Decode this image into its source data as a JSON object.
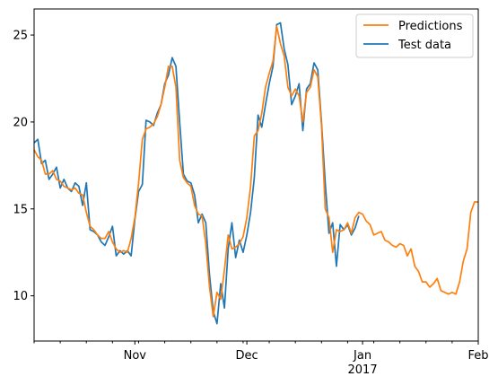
{
  "chart_data": {
    "type": "line",
    "title": "",
    "xlabel": "",
    "ylabel": "",
    "ylim": [
      7.4,
      26.5
    ],
    "xlim": [
      "2016-10-05",
      "2017-02-01"
    ],
    "grid": false,
    "legend_position": "top-right",
    "x_tick_labels": [
      {
        "date": "2016-11-01",
        "label": "Nov"
      },
      {
        "date": "2016-12-01",
        "label": "Dec"
      },
      {
        "date": "2017-01-01",
        "label": "Jan",
        "sublabel": "2017"
      },
      {
        "date": "2017-02-01",
        "label": "Feb"
      }
    ],
    "y_tick_labels": [
      10,
      15,
      20,
      25
    ],
    "series": [
      {
        "name": "Predictions",
        "color": "#ff7f0e",
        "points": [
          [
            "2016-10-05",
            18.4
          ],
          [
            "2016-10-06",
            18.0
          ],
          [
            "2016-10-07",
            17.8
          ],
          [
            "2016-10-08",
            17.0
          ],
          [
            "2016-10-09",
            17.0
          ],
          [
            "2016-10-10",
            17.2
          ],
          [
            "2016-10-11",
            16.7
          ],
          [
            "2016-10-12",
            16.6
          ],
          [
            "2016-10-13",
            16.3
          ],
          [
            "2016-10-14",
            16.2
          ],
          [
            "2016-10-15",
            16.1
          ],
          [
            "2016-10-16",
            16.2
          ],
          [
            "2016-10-17",
            15.9
          ],
          [
            "2016-10-18",
            15.8
          ],
          [
            "2016-10-19",
            14.8
          ],
          [
            "2016-10-20",
            14.0
          ],
          [
            "2016-10-21",
            13.8
          ],
          [
            "2016-10-22",
            13.5
          ],
          [
            "2016-10-23",
            13.3
          ],
          [
            "2016-10-24",
            13.3
          ],
          [
            "2016-10-25",
            13.7
          ],
          [
            "2016-10-26",
            13.1
          ],
          [
            "2016-10-27",
            12.7
          ],
          [
            "2016-10-28",
            12.5
          ],
          [
            "2016-10-29",
            12.6
          ],
          [
            "2016-10-30",
            12.5
          ],
          [
            "2016-10-31",
            13.3
          ],
          [
            "2016-11-01",
            14.5
          ],
          [
            "2016-11-02",
            16.5
          ],
          [
            "2016-11-03",
            19.0
          ],
          [
            "2016-11-04",
            19.6
          ],
          [
            "2016-11-05",
            19.7
          ],
          [
            "2016-11-06",
            19.9
          ],
          [
            "2016-11-07",
            20.3
          ],
          [
            "2016-11-08",
            21.0
          ],
          [
            "2016-11-09",
            22.0
          ],
          [
            "2016-11-10",
            23.2
          ],
          [
            "2016-11-11",
            23.2
          ],
          [
            "2016-11-12",
            22.0
          ],
          [
            "2016-11-13",
            17.8
          ],
          [
            "2016-11-14",
            16.8
          ],
          [
            "2016-11-15",
            16.5
          ],
          [
            "2016-11-16",
            16.3
          ],
          [
            "2016-11-17",
            15.2
          ],
          [
            "2016-11-18",
            14.7
          ],
          [
            "2016-11-19",
            14.6
          ],
          [
            "2016-11-20",
            13.0
          ],
          [
            "2016-11-21",
            10.5
          ],
          [
            "2016-11-22",
            8.8
          ],
          [
            "2016-11-23",
            10.2
          ],
          [
            "2016-11-24",
            9.8
          ],
          [
            "2016-11-25",
            11.5
          ],
          [
            "2016-11-26",
            13.5
          ],
          [
            "2016-11-27",
            12.7
          ],
          [
            "2016-11-28",
            12.8
          ],
          [
            "2016-11-29",
            13.0
          ],
          [
            "2016-11-30",
            13.4
          ],
          [
            "2016-12-01",
            14.5
          ],
          [
            "2016-12-02",
            16.3
          ],
          [
            "2016-12-03",
            19.2
          ],
          [
            "2016-12-04",
            19.5
          ],
          [
            "2016-12-05",
            20.5
          ],
          [
            "2016-12-06",
            22.0
          ],
          [
            "2016-12-07",
            22.8
          ],
          [
            "2016-12-08",
            23.5
          ],
          [
            "2016-12-09",
            25.5
          ],
          [
            "2016-12-10",
            24.5
          ],
          [
            "2016-12-11",
            23.8
          ],
          [
            "2016-12-12",
            22.0
          ],
          [
            "2016-12-13",
            21.5
          ],
          [
            "2016-12-14",
            21.9
          ],
          [
            "2016-12-15",
            21.5
          ],
          [
            "2016-12-16",
            20.0
          ],
          [
            "2016-12-17",
            21.7
          ],
          [
            "2016-12-18",
            22.0
          ],
          [
            "2016-12-19",
            23.0
          ],
          [
            "2016-12-20",
            22.6
          ],
          [
            "2016-12-21",
            19.8
          ],
          [
            "2016-12-22",
            15.0
          ],
          [
            "2016-12-23",
            14.5
          ],
          [
            "2016-12-24",
            12.5
          ],
          [
            "2016-12-25",
            13.8
          ],
          [
            "2016-12-26",
            13.7
          ],
          [
            "2016-12-27",
            13.8
          ],
          [
            "2016-12-28",
            14.2
          ],
          [
            "2016-12-29",
            13.6
          ],
          [
            "2016-12-30",
            14.5
          ],
          [
            "2016-12-31",
            14.8
          ],
          [
            "2017-01-01",
            14.7
          ],
          [
            "2017-01-02",
            14.3
          ],
          [
            "2017-01-03",
            14.1
          ],
          [
            "2017-01-04",
            13.5
          ],
          [
            "2017-01-05",
            13.6
          ],
          [
            "2017-01-06",
            13.7
          ],
          [
            "2017-01-07",
            13.2
          ],
          [
            "2017-01-08",
            13.1
          ],
          [
            "2017-01-09",
            12.9
          ],
          [
            "2017-01-10",
            12.8
          ],
          [
            "2017-01-11",
            13.0
          ],
          [
            "2017-01-12",
            12.9
          ],
          [
            "2017-01-13",
            12.3
          ],
          [
            "2017-01-14",
            12.7
          ],
          [
            "2017-01-15",
            11.7
          ],
          [
            "2017-01-16",
            11.4
          ],
          [
            "2017-01-17",
            10.8
          ],
          [
            "2017-01-18",
            10.8
          ],
          [
            "2017-01-19",
            10.5
          ],
          [
            "2017-01-20",
            10.7
          ],
          [
            "2017-01-21",
            11.0
          ],
          [
            "2017-01-22",
            10.3
          ],
          [
            "2017-01-23",
            10.2
          ],
          [
            "2017-01-24",
            10.1
          ],
          [
            "2017-01-25",
            10.2
          ],
          [
            "2017-01-26",
            10.1
          ],
          [
            "2017-01-27",
            10.8
          ],
          [
            "2017-01-28",
            12.0
          ],
          [
            "2017-01-29",
            12.7
          ],
          [
            "2017-01-30",
            14.8
          ],
          [
            "2017-01-31",
            15.4
          ],
          [
            "2017-02-01",
            15.4
          ]
        ]
      },
      {
        "name": "Test data",
        "color": "#1f77b4",
        "points": [
          [
            "2016-10-05",
            18.8
          ],
          [
            "2016-10-06",
            19.0
          ],
          [
            "2016-10-07",
            17.6
          ],
          [
            "2016-10-08",
            17.8
          ],
          [
            "2016-10-09",
            16.7
          ],
          [
            "2016-10-10",
            17.0
          ],
          [
            "2016-10-11",
            17.4
          ],
          [
            "2016-10-12",
            16.2
          ],
          [
            "2016-10-13",
            16.7
          ],
          [
            "2016-10-14",
            16.2
          ],
          [
            "2016-10-15",
            16.0
          ],
          [
            "2016-10-16",
            16.5
          ],
          [
            "2016-10-17",
            16.3
          ],
          [
            "2016-10-18",
            15.2
          ],
          [
            "2016-10-19",
            16.5
          ],
          [
            "2016-10-20",
            13.8
          ],
          [
            "2016-10-21",
            13.7
          ],
          [
            "2016-10-22",
            13.5
          ],
          [
            "2016-10-23",
            13.1
          ],
          [
            "2016-10-24",
            12.9
          ],
          [
            "2016-10-25",
            13.4
          ],
          [
            "2016-10-26",
            14.0
          ],
          [
            "2016-10-27",
            12.3
          ],
          [
            "2016-10-28",
            12.6
          ],
          [
            "2016-10-29",
            12.4
          ],
          [
            "2016-10-30",
            12.6
          ],
          [
            "2016-10-31",
            12.3
          ],
          [
            "2016-11-01",
            14.4
          ],
          [
            "2016-11-02",
            16.0
          ],
          [
            "2016-11-03",
            16.4
          ],
          [
            "2016-11-04",
            20.1
          ],
          [
            "2016-11-05",
            20.0
          ],
          [
            "2016-11-06",
            19.8
          ],
          [
            "2016-11-07",
            20.5
          ],
          [
            "2016-11-08",
            21.0
          ],
          [
            "2016-11-09",
            22.2
          ],
          [
            "2016-11-10",
            22.7
          ],
          [
            "2016-11-11",
            23.7
          ],
          [
            "2016-11-12",
            23.2
          ],
          [
            "2016-11-13",
            20.0
          ],
          [
            "2016-11-14",
            17.0
          ],
          [
            "2016-11-15",
            16.6
          ],
          [
            "2016-11-16",
            16.5
          ],
          [
            "2016-11-17",
            15.8
          ],
          [
            "2016-11-18",
            14.2
          ],
          [
            "2016-11-19",
            14.7
          ],
          [
            "2016-11-20",
            14.2
          ],
          [
            "2016-11-21",
            11.2
          ],
          [
            "2016-11-22",
            9.1
          ],
          [
            "2016-11-23",
            8.4
          ],
          [
            "2016-11-24",
            10.7
          ],
          [
            "2016-11-25",
            9.3
          ],
          [
            "2016-11-26",
            12.7
          ],
          [
            "2016-11-27",
            14.2
          ],
          [
            "2016-11-28",
            12.2
          ],
          [
            "2016-11-29",
            13.2
          ],
          [
            "2016-11-30",
            12.5
          ],
          [
            "2016-12-01",
            13.5
          ],
          [
            "2016-12-02",
            14.8
          ],
          [
            "2016-12-03",
            16.8
          ],
          [
            "2016-12-04",
            20.4
          ],
          [
            "2016-12-05",
            19.7
          ],
          [
            "2016-12-06",
            21.0
          ],
          [
            "2016-12-07",
            22.2
          ],
          [
            "2016-12-08",
            23.2
          ],
          [
            "2016-12-09",
            25.6
          ],
          [
            "2016-12-10",
            25.7
          ],
          [
            "2016-12-11",
            24.2
          ],
          [
            "2016-12-12",
            23.3
          ],
          [
            "2016-12-13",
            21.0
          ],
          [
            "2016-12-14",
            21.5
          ],
          [
            "2016-12-15",
            22.2
          ],
          [
            "2016-12-16",
            19.5
          ],
          [
            "2016-12-17",
            21.9
          ],
          [
            "2016-12-18",
            22.2
          ],
          [
            "2016-12-19",
            23.4
          ],
          [
            "2016-12-20",
            23.0
          ],
          [
            "2016-12-21",
            20.0
          ],
          [
            "2016-12-22",
            16.5
          ],
          [
            "2016-12-23",
            13.6
          ],
          [
            "2016-12-24",
            14.2
          ],
          [
            "2016-12-25",
            11.7
          ],
          [
            "2016-12-26",
            14.1
          ],
          [
            "2016-12-27",
            13.8
          ],
          [
            "2016-12-28",
            14.1
          ],
          [
            "2016-12-29",
            13.5
          ],
          [
            "2016-12-30",
            13.9
          ],
          [
            "2016-12-31",
            14.6
          ]
        ]
      }
    ]
  }
}
